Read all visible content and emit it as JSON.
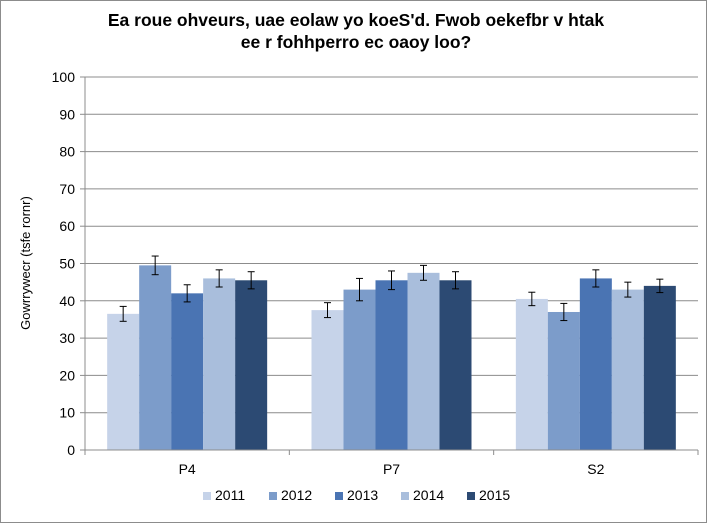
{
  "chart_data": {
    "type": "bar",
    "title_lines": [
      "Ea roue ohveurs, uae eolaw yo koeS'd. Fwob oekefbr v htak",
      "ee r fohhperro ec oaoy loo?"
    ],
    "ylabel": "Gowrrywecr (tsfe rornr)",
    "xlabel": "",
    "categories": [
      "P4",
      "P7",
      "S2"
    ],
    "ylim": [
      0,
      100
    ],
    "yticks": [
      0,
      10,
      20,
      30,
      40,
      50,
      60,
      70,
      80,
      90,
      100
    ],
    "grid": true,
    "legend_position": "bottom",
    "error_bars": true,
    "series": [
      {
        "name": "2011",
        "color": "#c6d3e9",
        "values": [
          36.5,
          37.5,
          40.5
        ],
        "err": [
          2.0,
          2.0,
          1.8
        ]
      },
      {
        "name": "2012",
        "color": "#7c9cca",
        "values": [
          49.5,
          43.0,
          37.0
        ],
        "err": [
          2.5,
          3.0,
          2.3
        ]
      },
      {
        "name": "2013",
        "color": "#4a74b3",
        "values": [
          42.0,
          45.5,
          46.0
        ],
        "err": [
          2.3,
          2.5,
          2.3
        ]
      },
      {
        "name": "2014",
        "color": "#a9bedc",
        "values": [
          46.0,
          47.5,
          43.0
        ],
        "err": [
          2.3,
          2.0,
          2.0
        ]
      },
      {
        "name": "2015",
        "color": "#2c4a73",
        "values": [
          45.5,
          45.5,
          44.0
        ],
        "err": [
          2.3,
          2.3,
          1.8
        ]
      }
    ]
  }
}
